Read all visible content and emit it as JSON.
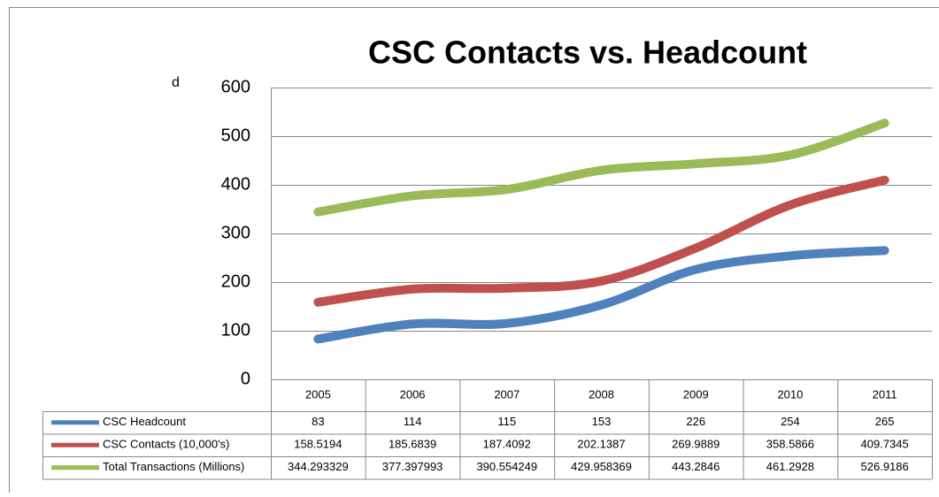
{
  "chart_data": {
    "type": "line",
    "title": "CSC Contacts vs. Headcount",
    "annotations": [
      "d"
    ],
    "categories": [
      "2005",
      "2006",
      "2007",
      "2008",
      "2009",
      "2010",
      "2011"
    ],
    "series": [
      {
        "name": "CSC Headcount",
        "color": "#4f81bd",
        "values": [
          83,
          114,
          115,
          153,
          226,
          254,
          265
        ]
      },
      {
        "name": "CSC Contacts (10,000's)",
        "color": "#c0504d",
        "values": [
          158.5194,
          185.6839,
          187.4092,
          202.1387,
          269.9889,
          358.5866,
          409.7345
        ]
      },
      {
        "name": "Total Transactions (Millions)",
        "color": "#9bbb59",
        "values": [
          344.293329,
          377.397993,
          390.554249,
          429.958369,
          443.2846,
          461.2928,
          526.9186
        ]
      }
    ],
    "ylim": [
      0,
      600
    ],
    "yticks": [
      0,
      100,
      200,
      300,
      400,
      500,
      600
    ],
    "grid": true,
    "data_table": true
  }
}
